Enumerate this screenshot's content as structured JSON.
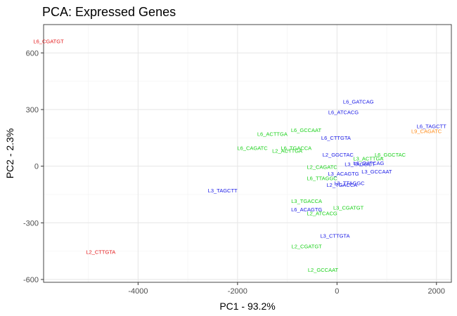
{
  "chart_data": {
    "type": "scatter",
    "title": "PCA: Expressed Genes",
    "xlabel": "PC1 - 93.2%",
    "ylabel": "PC2 - 2.3%",
    "xlim": [
      -5900,
      2300
    ],
    "ylim": [
      -615,
      750
    ],
    "xticks": [
      -4000,
      -2000,
      0,
      2000
    ],
    "xtick_labels": [
      "-4000",
      "-2000",
      "0",
      "2000"
    ],
    "yticks": [
      -600,
      -300,
      0,
      300,
      600
    ],
    "ytick_labels": [
      "-600",
      "-300",
      "0",
      "300",
      "600"
    ],
    "x_minor": [
      -5000,
      -3000,
      -1000,
      1000
    ],
    "y_minor": [
      -450,
      -150,
      150,
      450
    ],
    "grid": true,
    "legend": "none",
    "group_colors": {
      "L2": "#e41a1c",
      "L3": "#1a1ae6",
      "L6": "#1ad11a",
      "L9": "#ff8c1a"
    },
    "points": [
      {
        "label": "L6_CGATGT",
        "x": -5800,
        "y": 660,
        "group": "red"
      },
      {
        "label": "L2_CTTGTA",
        "x": -4750,
        "y": -455,
        "group": "red"
      },
      {
        "label": "L9_CAGATC",
        "x": 1800,
        "y": 185,
        "group": "orange"
      },
      {
        "label": "L6_GATCAG",
        "x": 430,
        "y": 340,
        "group": "blue"
      },
      {
        "label": "L6_ATCACG",
        "x": 130,
        "y": 285,
        "group": "blue"
      },
      {
        "label": "L6_TAGCTT",
        "x": 1900,
        "y": 210,
        "group": "blue"
      },
      {
        "label": "L6_CTTGTA",
        "x": -20,
        "y": 150,
        "group": "blue"
      },
      {
        "label": "L2_GGCTAC",
        "x": 20,
        "y": 60,
        "group": "blue"
      },
      {
        "label": "L3_TAGGCT",
        "x": 460,
        "y": 10,
        "group": "blue"
      },
      {
        "label": "L6_GATCAG",
        "x": 640,
        "y": 15,
        "group": "blue"
      },
      {
        "label": "L3_ACAGTG",
        "x": 130,
        "y": -40,
        "group": "blue"
      },
      {
        "label": "L3_GCCAAT",
        "x": 800,
        "y": -30,
        "group": "blue"
      },
      {
        "label": "L3_TTAGGC",
        "x": 250,
        "y": -90,
        "group": "blue"
      },
      {
        "label": "L2_TGACCA",
        "x": 100,
        "y": -100,
        "group": "blue"
      },
      {
        "label": "L3_TAGCTT",
        "x": -2300,
        "y": -130,
        "group": "blue"
      },
      {
        "label": "L6_ACAGTG",
        "x": -610,
        "y": -230,
        "group": "blue"
      },
      {
        "label": "L3_CTTGTA",
        "x": -40,
        "y": -370,
        "group": "blue"
      },
      {
        "label": "L6_GCCAAT",
        "x": -620,
        "y": 190,
        "group": "green"
      },
      {
        "label": "L6_ACTTGA",
        "x": -1300,
        "y": 170,
        "group": "green"
      },
      {
        "label": "L6_CAGATC",
        "x": -1700,
        "y": 95,
        "group": "green"
      },
      {
        "label": "L6_TGACCA",
        "x": -820,
        "y": 95,
        "group": "green"
      },
      {
        "label": "L2_ACTTGA",
        "x": -1000,
        "y": 80,
        "group": "green"
      },
      {
        "label": "L3_ACTTGA",
        "x": 630,
        "y": 40,
        "group": "green"
      },
      {
        "label": "L6_GGCTAC",
        "x": 1070,
        "y": 60,
        "group": "green"
      },
      {
        "label": "L2_CAGATC",
        "x": -300,
        "y": -5,
        "group": "green"
      },
      {
        "label": "L6_TTAGGC",
        "x": -300,
        "y": -65,
        "group": "green"
      },
      {
        "label": "L3_TGACCA",
        "x": -610,
        "y": -185,
        "group": "green"
      },
      {
        "label": "L3_CGATGT",
        "x": 230,
        "y": -220,
        "group": "green"
      },
      {
        "label": "L2_ATCACG",
        "x": -300,
        "y": -250,
        "group": "green"
      },
      {
        "label": "L2_CGATGT",
        "x": -610,
        "y": -425,
        "group": "green"
      },
      {
        "label": "L2_GCCAAT",
        "x": -280,
        "y": -550,
        "group": "green"
      }
    ]
  }
}
